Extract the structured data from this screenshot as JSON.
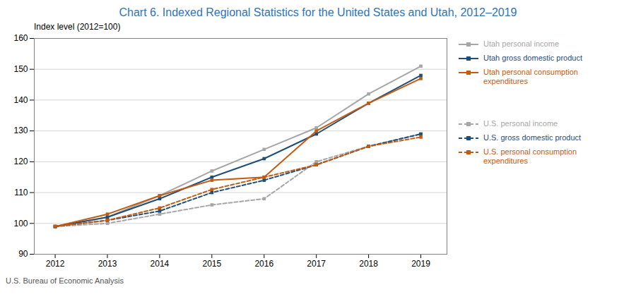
{
  "chart_data": {
    "type": "line",
    "title": "Chart 6. Indexed Regional Statistics for the United States and Utah, 2012–2019",
    "ylabel": "Index level (2012=100)",
    "source": "U.S. Bureau of Economic Analysis",
    "x": [
      2012,
      2013,
      2014,
      2015,
      2016,
      2017,
      2018,
      2019
    ],
    "series": [
      {
        "name": "Utah personal income",
        "color": "#a6a6a6",
        "line_style": "solid",
        "marker": "square",
        "values": [
          99,
          102,
          109,
          117,
          124,
          131,
          142,
          151
        ]
      },
      {
        "name": "Utah gross domestic product",
        "color": "#1f4e79",
        "line_style": "solid",
        "marker": "square",
        "values": [
          99,
          102,
          108,
          115,
          121,
          129,
          139,
          148
        ]
      },
      {
        "name": "Utah personal consumption\nexpenditures",
        "color": "#c55a11",
        "line_style": "solid",
        "marker": "square",
        "values": [
          99,
          103,
          109,
          114,
          115,
          130,
          139,
          147
        ]
      },
      {
        "name": "U.S. personal income",
        "color": "#a6a6a6",
        "line_style": "dashed",
        "marker": "square",
        "values": [
          99,
          100,
          103,
          106,
          108,
          120,
          125,
          129
        ]
      },
      {
        "name": "U.S. gross domestic product",
        "color": "#1f4e79",
        "line_style": "dashed",
        "marker": "square",
        "values": [
          99,
          101,
          104,
          110,
          114,
          119,
          125,
          129
        ]
      },
      {
        "name": "U.S. personal consumption\nexpenditures",
        "color": "#c55a11",
        "line_style": "dashed",
        "marker": "square",
        "values": [
          99,
          101,
          105,
          111,
          115,
          119,
          125,
          128
        ]
      }
    ],
    "xlim": [
      2011.6,
      2019.5
    ],
    "xticks": [
      2012,
      2013,
      2014,
      2015,
      2016,
      2017,
      2018,
      2019
    ],
    "ylim": [
      90,
      160
    ],
    "yticks": [
      90,
      100,
      110,
      120,
      130,
      140,
      150,
      160
    ],
    "grid": true,
    "legend": "right"
  }
}
